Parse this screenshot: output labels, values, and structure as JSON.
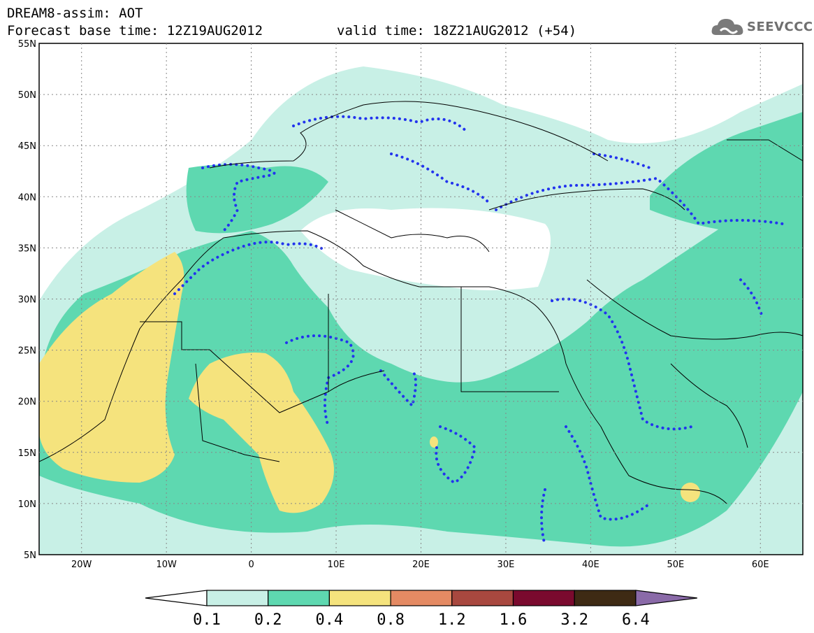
{
  "header": {
    "title_line1": "DREAM8-assim: AOT",
    "title_line2": "Forecast base time: 12Z19AUG2012",
    "valid_text": "valid time: 18Z21AUG2012 (+54)",
    "logo_text": "SEEVCCC"
  },
  "map": {
    "lat_labels": [
      "55N",
      "50N",
      "45N",
      "40N",
      "35N",
      "30N",
      "25N",
      "20N",
      "15N",
      "10N",
      "5N"
    ],
    "lon_labels": [
      "20W",
      "10W",
      "0",
      "10E",
      "20E",
      "30E",
      "40E",
      "50E",
      "60E"
    ]
  },
  "colorbar": {
    "labels": [
      "0.1",
      "0.2",
      "0.4",
      "0.8",
      "1.2",
      "1.6",
      "3.2",
      "6.4"
    ],
    "colors": [
      "#c8f0e6",
      "#5ed8b0",
      "#f5e37d",
      "#e48a63",
      "#a8483f",
      "#7a0a2e",
      "#3e2a14",
      "#8a6aa8"
    ]
  },
  "colors": {
    "land_shading_lowest": "#c8f0e6",
    "land_shading_low": "#5ed8b0",
    "land_shading_mid": "#f5e37d",
    "contour_dots": "#2233ee"
  }
}
